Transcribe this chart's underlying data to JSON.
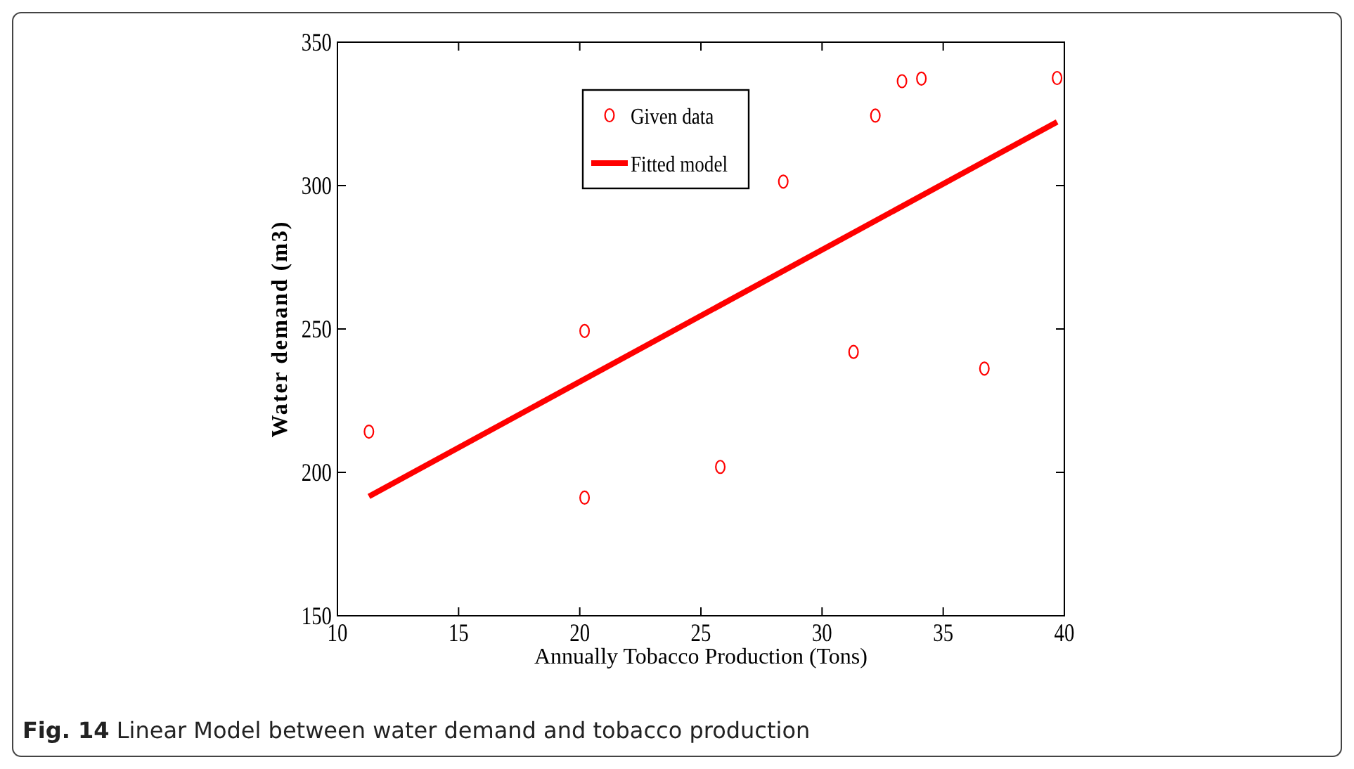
{
  "chart_data": {
    "type": "scatter",
    "xlabel": "Annually Tobacco Production (Tons)",
    "ylabel": "Water demand (m3)",
    "xlim": [
      10,
      40
    ],
    "xticks": [
      10,
      15,
      20,
      25,
      30,
      35,
      40
    ],
    "ylim": [
      150,
      350
    ],
    "yticks": [
      150,
      200,
      250,
      300,
      350
    ],
    "legend": "top",
    "grid": false,
    "series": [
      {
        "name": "Given data",
        "marker": "circle",
        "color": "#ff0000",
        "x": [
          11.3,
          20.2,
          20.2,
          25.8,
          28.4,
          31.3,
          32.2,
          33.3,
          34.1,
          36.7,
          39.7
        ],
        "values": [
          214.2,
          249.3,
          191.2,
          201.9,
          301.4,
          242.0,
          324.4,
          336.4,
          337.3,
          236.2,
          337.5
        ]
      },
      {
        "name": "Fitted model",
        "type": "line",
        "marker": "none",
        "line_style": "solid",
        "color": "#ff0000",
        "x": [
          11.3,
          39.7
        ],
        "values": [
          191.6,
          322.2
        ]
      }
    ],
    "annotations": [
      "Fig. 14 Linear Model between water demand and tobacco production"
    ]
  }
}
